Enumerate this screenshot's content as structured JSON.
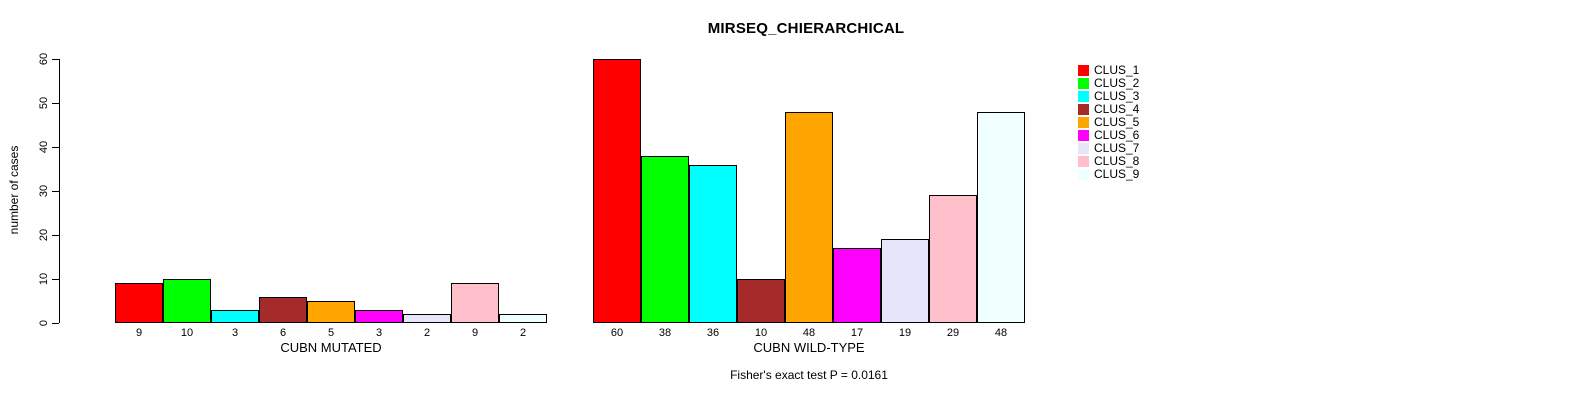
{
  "chart_data": {
    "type": "bar",
    "title": "MIRSEQ_CHIERARCHICAL",
    "ylabel": "number of cases",
    "ylim": [
      0,
      60
    ],
    "yticks": [
      0,
      10,
      20,
      30,
      40,
      50,
      60
    ],
    "grid": false,
    "legend_position": "right",
    "colors": [
      "#FF0000",
      "#00FF00",
      "#00FFFF",
      "#A52A2A",
      "#FFA500",
      "#FF00FF",
      "#E6E6FA",
      "#FFC0CB",
      "#F0FFFF"
    ],
    "legend": [
      "CLUS_1",
      "CLUS_2",
      "CLUS_3",
      "CLUS_4",
      "CLUS_5",
      "CLUS_6",
      "CLUS_7",
      "CLUS_8",
      "CLUS_9"
    ],
    "groups": [
      {
        "label": "CUBN MUTATED",
        "values": [
          9,
          10,
          3,
          6,
          5,
          3,
          2,
          9,
          2
        ]
      },
      {
        "label": "CUBN WILD-TYPE",
        "values": [
          60,
          38,
          36,
          10,
          48,
          17,
          19,
          29,
          48
        ]
      }
    ],
    "caption": "Fisher's exact test P = 0.0161"
  }
}
